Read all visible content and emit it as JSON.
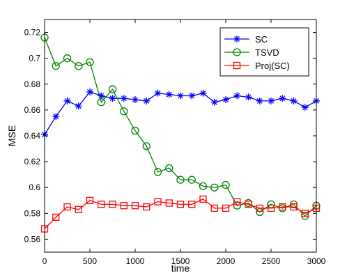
{
  "chart_data": {
    "type": "line",
    "title": "",
    "xlabel": "time",
    "ylabel": "MSE",
    "xlim": [
      0,
      3000
    ],
    "ylim": [
      0.55,
      0.73
    ],
    "xticks": [
      0,
      500,
      1000,
      1500,
      2000,
      2500,
      3000
    ],
    "yticks": [
      0.56,
      0.58,
      0.6,
      0.62,
      0.64,
      0.66,
      0.68,
      0.7,
      0.72
    ],
    "ytick_labels": [
      "0.56",
      "0.58",
      "0.6",
      "0.62",
      "0.64",
      "0.66",
      "0.68",
      "0.7",
      "0.72"
    ],
    "grid": false,
    "legend_position": "top-right",
    "x": [
      0,
      125,
      250,
      375,
      500,
      625,
      750,
      875,
      1000,
      1125,
      1250,
      1375,
      1500,
      1625,
      1750,
      1875,
      2000,
      2125,
      2250,
      2375,
      2500,
      2625,
      2750,
      2875,
      3000
    ],
    "series": [
      {
        "name": "SC",
        "color": "#0000ff",
        "marker": "asterisk",
        "values": [
          0.641,
          0.655,
          0.667,
          0.663,
          0.674,
          0.671,
          0.669,
          0.669,
          0.668,
          0.667,
          0.673,
          0.672,
          0.671,
          0.671,
          0.673,
          0.666,
          0.668,
          0.671,
          0.67,
          0.667,
          0.667,
          0.669,
          0.667,
          0.662,
          0.667
        ]
      },
      {
        "name": "TSVD",
        "color": "#008000",
        "marker": "circle",
        "values": [
          0.716,
          0.694,
          0.7,
          0.694,
          0.697,
          0.666,
          0.676,
          0.659,
          0.644,
          0.632,
          0.612,
          0.615,
          0.606,
          0.606,
          0.601,
          0.6,
          0.602,
          0.586,
          0.588,
          0.581,
          0.587,
          0.584,
          0.587,
          0.578,
          0.586
        ]
      },
      {
        "name": "Proj(SC)",
        "color": "#ff0000",
        "marker": "square",
        "values": [
          0.568,
          0.577,
          0.585,
          0.583,
          0.59,
          0.587,
          0.587,
          0.586,
          0.586,
          0.585,
          0.589,
          0.588,
          0.587,
          0.587,
          0.591,
          0.584,
          0.584,
          0.589,
          0.587,
          0.584,
          0.584,
          0.585,
          0.585,
          0.58,
          0.584
        ]
      }
    ]
  }
}
